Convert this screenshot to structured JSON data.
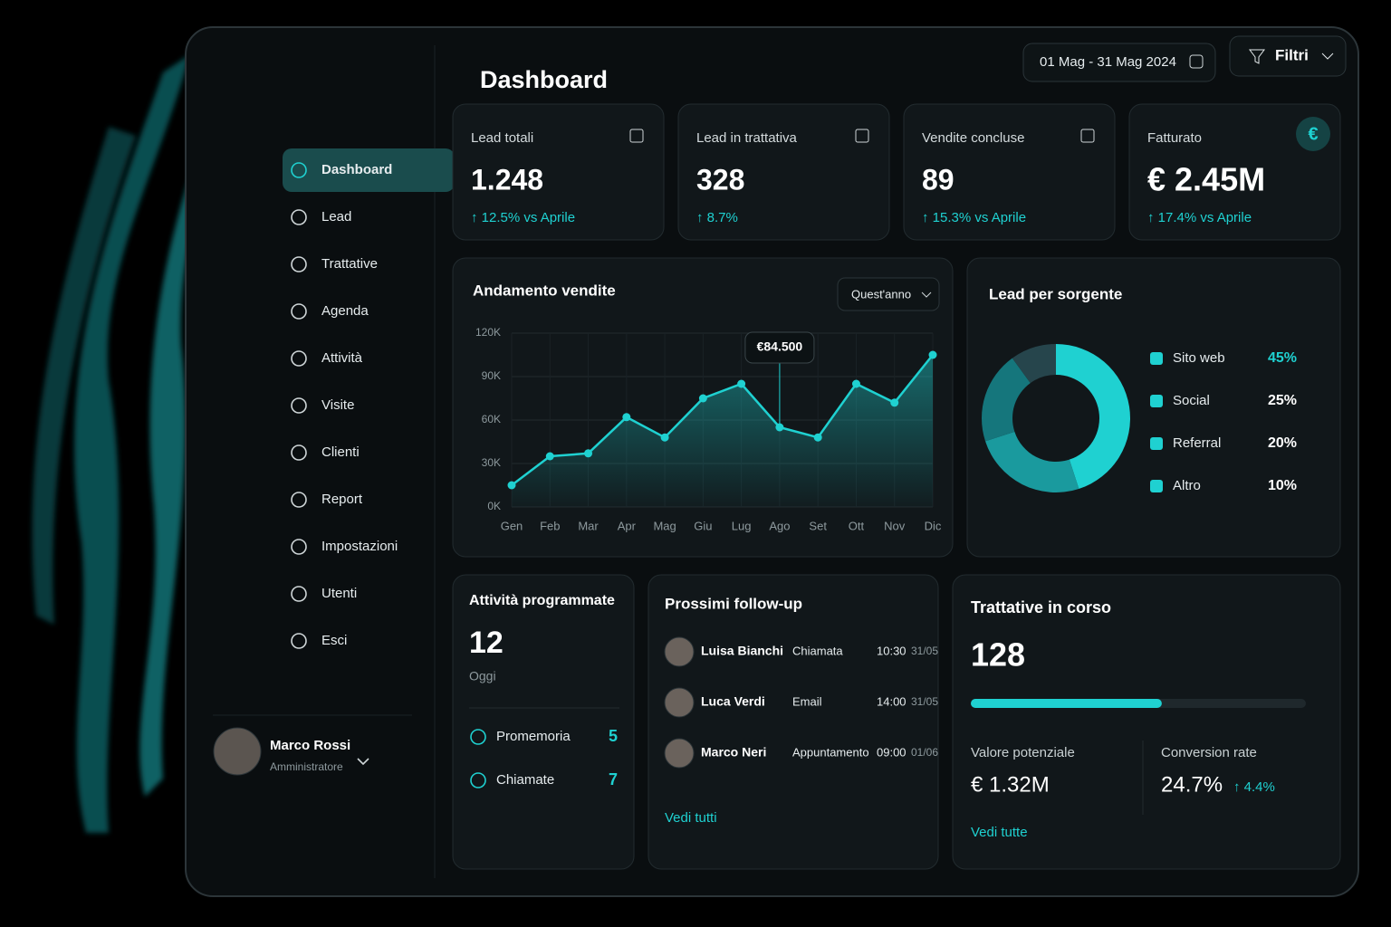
{
  "header": {
    "title": "Dashboard",
    "date_range": "01 Mag - 31 Mag 2024",
    "filter": "Filtri"
  },
  "sidebar": {
    "nav": [
      "Dashboard",
      "Lead",
      "Trattative",
      "Agenda",
      "Attività",
      "Visite",
      "Clienti",
      "Report",
      "Impostazioni",
      "Utenti",
      "Esci"
    ],
    "user": {
      "name": "Marco Rossi",
      "role": "Amministratore"
    }
  },
  "kpis": [
    {
      "label": "Lead totali",
      "value": "1.248",
      "change": "↑ 12.5%  vs Aprile"
    },
    {
      "label": "Lead in trattativa",
      "value": "328",
      "change": "↑ 8.7%"
    },
    {
      "label": "Vendite concluse",
      "value": "89",
      "change": "↑ 15.3%  vs Aprile"
    },
    {
      "label": "Fatturato",
      "value": "€ 2.45M",
      "change": "↑ 17.4%  vs Aprile",
      "badge": "€"
    }
  ],
  "chart_data": [
    {
      "type": "line",
      "title": "Andamento vendite",
      "period": "Quest'anno",
      "categories": [
        "Gen",
        "Feb",
        "Mar",
        "Apr",
        "Mag",
        "Giu",
        "Lug",
        "Ago",
        "Set",
        "Ott",
        "Nov",
        "Dic"
      ],
      "series": [
        {
          "name": "Vendite",
          "color": "#1fd1d1",
          "values": [
            15,
            35,
            37,
            62,
            48,
            75,
            85,
            55,
            48,
            85,
            72,
            105
          ]
        }
      ],
      "ylim": [
        0,
        120
      ],
      "yticks": [
        {
          "value": 0,
          "label": "0K"
        },
        {
          "value": 30,
          "label": "30K"
        },
        {
          "value": 60,
          "label": "60K"
        },
        {
          "value": 90,
          "label": "90K"
        },
        {
          "value": 120,
          "label": "120K"
        }
      ],
      "annotation": "€84.500",
      "grid": true
    },
    {
      "type": "pie",
      "title": "Lead per sorgente",
      "categories": [
        "Sito web",
        "Social",
        "Referral",
        "Altro"
      ],
      "values": [
        45,
        25,
        20,
        10
      ],
      "value_labels": [
        "45%",
        "25%",
        "20%",
        "10%"
      ],
      "colors": [
        "#1fd1d1",
        "#1a9a9e",
        "#15767c",
        "#26454c"
      ]
    }
  ],
  "activities": {
    "title": "Attività programmate",
    "count": "12",
    "sub": "Oggi",
    "items": [
      {
        "label": "Promemoria",
        "count": "5"
      },
      {
        "label": "Chiamate",
        "count": "7"
      }
    ]
  },
  "followups": {
    "title": "Prossimi follow-up",
    "link": "Vedi tutti",
    "rows": [
      {
        "name": "Luisa Bianchi",
        "type": "Chiamata",
        "time": "10:30",
        "date": "31/05"
      },
      {
        "name": "Luca Verdi",
        "type": "Email",
        "time": "14:00",
        "date": "31/05"
      },
      {
        "name": "Marco Neri",
        "type": "Appuntamento",
        "time": "09:00",
        "date": "01/06"
      }
    ]
  },
  "deals": {
    "title": "Trattative in corso",
    "count": "128",
    "progress": 57,
    "potential_label": "Valore potenziale",
    "potential": "€ 1.32M",
    "conversion_label": "Conversion rate",
    "conversion": "24.7%",
    "conversion_change": "↑ 4.4%",
    "link": "Vedi tutte"
  }
}
